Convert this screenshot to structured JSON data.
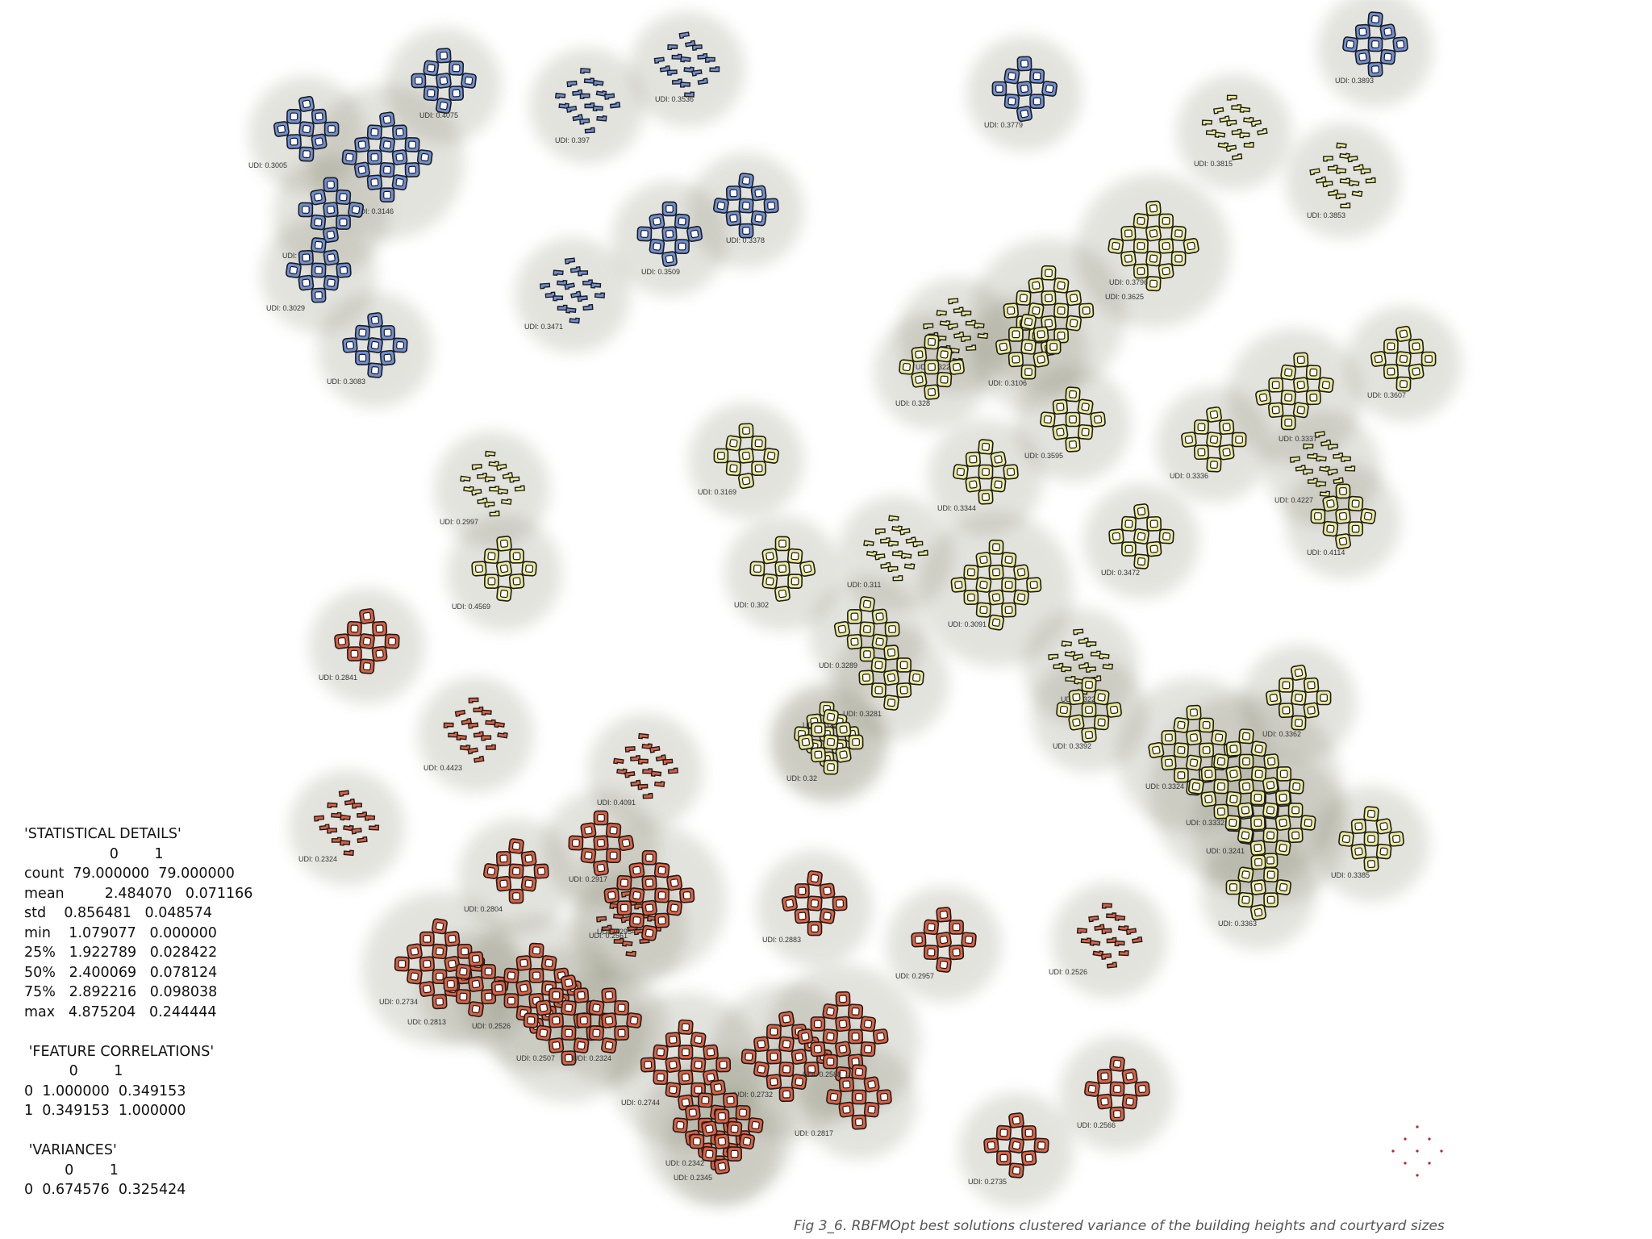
{
  "caption": "Fig 3_6. RBFMOpt best solutions clustered variance of the building heights and courtyard sizes",
  "colors": {
    "blue": "#6f8fd6",
    "yellow": "#eceb99",
    "red": "#e06040",
    "outline": "#1b1b1b"
  },
  "stats_lines": [
    "'STATISTICAL DETAILS'",
    "                   0        1",
    "count  79.000000  79.000000",
    "mean         2.484070   0.071166",
    "std    0.856481   0.048574",
    "min    1.079077   0.000000",
    "25%   1.922789   0.028422",
    "50%   2.400069   0.078124",
    "75%   2.892216   0.098038",
    "max   4.875204   0.244444",
    "",
    " 'FEATURE CORRELATIONS'",
    "          0        1",
    "0  1.000000  0.349153",
    "1  0.349153  1.000000",
    "",
    " 'VARIANCES'",
    "         0        1",
    "0  0.674576  0.325424"
  ],
  "clusters": [
    {
      "c": "blue",
      "label": "UDI: 0.3005"
    },
    {
      "c": "blue",
      "label": "UDI: 0.4075"
    },
    {
      "c": "blue",
      "label": "UDI: 0.397"
    },
    {
      "c": "blue",
      "label": "UDI: 0.3536"
    },
    {
      "c": "blue",
      "label": "UDI: 0.3779"
    },
    {
      "c": "blue",
      "label": "UDI: 0.3893"
    },
    {
      "c": "blue",
      "label": "UDI: 0.3146"
    },
    {
      "c": "blue",
      "label": "UDI: 0.3"
    },
    {
      "c": "blue",
      "label": "UDI: 0.3029"
    },
    {
      "c": "blue",
      "label": "UDI: 0.3083"
    },
    {
      "c": "blue",
      "label": "UDI: 0.3509"
    },
    {
      "c": "blue",
      "label": "UDI: 0.3378"
    },
    {
      "c": "blue",
      "label": "UDI: 0.3471"
    },
    {
      "c": "yellow",
      "label": "UDI: 0.3815"
    },
    {
      "c": "yellow",
      "label": "UDI: 0.3853"
    },
    {
      "c": "yellow",
      "label": "UDI: 0.3796"
    },
    {
      "c": "yellow",
      "label": "UDI: 0.3625"
    },
    {
      "c": "yellow",
      "label": "UDI: 0.3106"
    },
    {
      "c": "yellow",
      "label": "UDI: 0.3227"
    },
    {
      "c": "yellow",
      "label": "UDI: 0.328"
    },
    {
      "c": "yellow",
      "label": "UDI: 0.3607"
    },
    {
      "c": "yellow",
      "label": "UDI: 0.3337"
    },
    {
      "c": "yellow",
      "label": "UDI: 0.3595"
    },
    {
      "c": "yellow",
      "label": "UDI: 0.3336"
    },
    {
      "c": "yellow",
      "label": "UDI: 0.3169"
    },
    {
      "c": "yellow",
      "label": "UDI: 0.3344"
    },
    {
      "c": "yellow",
      "label": "UDI: 0.4227"
    },
    {
      "c": "yellow",
      "label": "UDI: 0.4114"
    },
    {
      "c": "yellow",
      "label": "UDI: 0.2997"
    },
    {
      "c": "yellow",
      "label": "UDI: 0.3472"
    },
    {
      "c": "yellow",
      "label": "UDI: 0.302"
    },
    {
      "c": "yellow",
      "label": "UDI: 0.311"
    },
    {
      "c": "yellow",
      "label": "UDI: 0.4569"
    },
    {
      "c": "yellow",
      "label": "UDI: 0.3091"
    },
    {
      "c": "yellow",
      "label": "UDI: 0.3289"
    },
    {
      "c": "yellow",
      "label": "UDI: 0.3281"
    },
    {
      "c": "yellow",
      "label": "UDI: 0.3248"
    },
    {
      "c": "yellow",
      "label": "UDI: 0.32"
    },
    {
      "c": "yellow",
      "label": "UDI: 0.3227"
    },
    {
      "c": "yellow",
      "label": "UDI: 0.3392"
    },
    {
      "c": "yellow",
      "label": "UDI: 0.3362"
    },
    {
      "c": "yellow",
      "label": "UDI: 0.3324"
    },
    {
      "c": "yellow",
      "label": "UDI: 0.3332"
    },
    {
      "c": "yellow",
      "label": "UDI: 0.3241"
    },
    {
      "c": "yellow",
      "label": "UDI: 0.3363"
    },
    {
      "c": "yellow",
      "label": "UDI: 0.3385"
    },
    {
      "c": "red",
      "label": "UDI: 0.2841"
    },
    {
      "c": "red",
      "label": "UDI: 0.4423"
    },
    {
      "c": "red",
      "label": "UDI: 0.4091"
    },
    {
      "c": "red",
      "label": "UDI: 0.2324"
    },
    {
      "c": "red",
      "label": "UDI: 0.2917"
    },
    {
      "c": "red",
      "label": "UDI: 0.2804"
    },
    {
      "c": "red",
      "label": "UDI: 0.2561"
    },
    {
      "c": "red",
      "label": "UDI: 0.2954"
    },
    {
      "c": "red",
      "label": "UDI: 0.2883"
    },
    {
      "c": "red",
      "label": "UDI: 0.2957"
    },
    {
      "c": "red",
      "label": "UDI: 0.2526"
    },
    {
      "c": "red",
      "label": "UDI: 0.2734"
    },
    {
      "c": "red",
      "label": "UDI: 0.2813"
    },
    {
      "c": "red",
      "label": "UDI: 0.2526"
    },
    {
      "c": "red",
      "label": "UDI: 0.2507"
    },
    {
      "c": "red",
      "label": "UDI: 0.2324"
    },
    {
      "c": "red",
      "label": "UDI: 0.2744"
    },
    {
      "c": "red",
      "label": "UDI: 0.2732"
    },
    {
      "c": "red",
      "label": "UDI: 0.2588"
    },
    {
      "c": "red",
      "label": "UDI: 0.2817"
    },
    {
      "c": "red",
      "label": "UDI: 0.2342"
    },
    {
      "c": "red",
      "label": "UDI: 0.2345"
    },
    {
      "c": "red",
      "label": "UDI: 0.2566"
    },
    {
      "c": "red",
      "label": "UDI: 0.2735"
    }
  ]
}
